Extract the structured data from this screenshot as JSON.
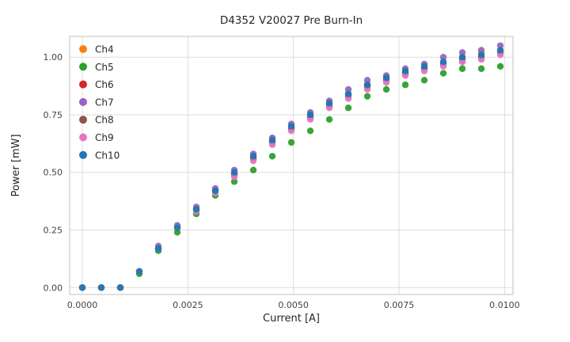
{
  "chart_data": {
    "type": "scatter",
    "title": "D4352 V20027 Pre Burn-In",
    "xlabel": "Current [A]",
    "ylabel": "Power [mW]",
    "xlim": [
      -0.0003,
      0.0102
    ],
    "ylim": [
      -0.03,
      1.09
    ],
    "xticks": [
      0.0,
      0.0025,
      0.005,
      0.0075,
      0.01
    ],
    "xtick_labels": [
      "0.0000",
      "0.0025",
      "0.0050",
      "0.0075",
      "0.0100"
    ],
    "yticks": [
      0.0,
      0.25,
      0.5,
      0.75,
      1.0
    ],
    "ytick_labels": [
      "0.00",
      "0.25",
      "0.50",
      "0.75",
      "1.00"
    ],
    "grid": true,
    "legend_position": "upper left",
    "colors": {
      "grid": "#dddddd",
      "spine": "#cccccc",
      "text": "#262626",
      "tick_text": "#444444"
    },
    "x": [
      0.0,
      0.00045,
      0.0009,
      0.00135,
      0.0018,
      0.00225,
      0.0027,
      0.00315,
      0.0036,
      0.00405,
      0.0045,
      0.00495,
      0.0054,
      0.00585,
      0.0063,
      0.00675,
      0.0072,
      0.00765,
      0.0081,
      0.00855,
      0.009,
      0.00945,
      0.0099
    ],
    "series": [
      {
        "name": "Ch4",
        "color": "#ff7f0e",
        "values": [
          0,
          0,
          0,
          0.07,
          0.17,
          0.26,
          0.34,
          0.42,
          0.49,
          0.57,
          0.64,
          0.7,
          0.75,
          0.8,
          0.84,
          0.88,
          0.91,
          0.93,
          0.96,
          0.97,
          1.0,
          1.02,
          1.03
        ]
      },
      {
        "name": "Ch5",
        "color": "#2ca02c",
        "values": [
          0,
          0,
          0,
          0.06,
          0.16,
          0.24,
          0.32,
          0.4,
          0.46,
          0.51,
          0.57,
          0.63,
          0.68,
          0.73,
          0.78,
          0.83,
          0.86,
          0.88,
          0.9,
          0.93,
          0.95,
          0.95,
          0.96
        ]
      },
      {
        "name": "Ch6",
        "color": "#d62728",
        "values": [
          0,
          0,
          0,
          0.07,
          0.17,
          0.26,
          0.34,
          0.42,
          0.49,
          0.56,
          0.63,
          0.69,
          0.74,
          0.79,
          0.84,
          0.88,
          0.91,
          0.93,
          0.95,
          0.97,
          0.99,
          1.0,
          1.02
        ]
      },
      {
        "name": "Ch7",
        "color": "#9467bd",
        "values": [
          0,
          0,
          0,
          0.07,
          0.18,
          0.27,
          0.35,
          0.43,
          0.51,
          0.58,
          0.65,
          0.71,
          0.76,
          0.81,
          0.86,
          0.9,
          0.92,
          0.95,
          0.97,
          1.0,
          1.02,
          1.03,
          1.05
        ]
      },
      {
        "name": "Ch8",
        "color": "#8c564b",
        "values": [
          0,
          0,
          0,
          0.07,
          0.17,
          0.26,
          0.34,
          0.42,
          0.49,
          0.56,
          0.63,
          0.69,
          0.74,
          0.79,
          0.83,
          0.87,
          0.9,
          0.93,
          0.95,
          0.97,
          0.98,
          1.0,
          1.02
        ]
      },
      {
        "name": "Ch9",
        "color": "#e377c2",
        "values": [
          0,
          0,
          0,
          0.07,
          0.17,
          0.26,
          0.33,
          0.41,
          0.48,
          0.55,
          0.62,
          0.68,
          0.73,
          0.78,
          0.82,
          0.86,
          0.89,
          0.92,
          0.94,
          0.96,
          0.98,
          0.99,
          1.01
        ]
      },
      {
        "name": "Ch10",
        "color": "#1f77b4",
        "values": [
          0,
          0,
          0,
          0.07,
          0.17,
          0.26,
          0.34,
          0.42,
          0.5,
          0.57,
          0.64,
          0.7,
          0.75,
          0.8,
          0.84,
          0.88,
          0.91,
          0.94,
          0.96,
          0.98,
          1.0,
          1.01,
          1.03
        ]
      }
    ]
  }
}
